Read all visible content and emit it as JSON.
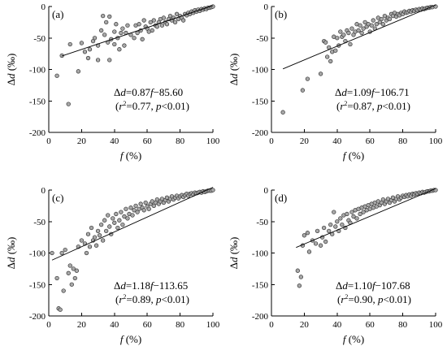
{
  "chart_data": [
    {
      "type": "scatter",
      "panel": "(a)",
      "xlabel": "f (%)",
      "ylabel": "Δd (‰)",
      "xlim": [
        0,
        100
      ],
      "ylim": [
        -200,
        0
      ],
      "xticks": [
        0,
        20,
        40,
        60,
        80,
        100
      ],
      "yticks": [
        0,
        -50,
        -100,
        -150,
        -200
      ],
      "equation": "Δd=0.87f−85.60",
      "stats": "(r2=0.77, p<0.01)",
      "fit": {
        "slope": 0.87,
        "intercept": -85.6,
        "x_range": [
          8,
          100
        ]
      },
      "points": [
        [
          5,
          -110
        ],
        [
          8,
          -78
        ],
        [
          12,
          -155
        ],
        [
          13,
          -60
        ],
        [
          18,
          -103
        ],
        [
          20,
          -58
        ],
        [
          22,
          -72
        ],
        [
          24,
          -82
        ],
        [
          25,
          -68
        ],
        [
          27,
          -55
        ],
        [
          28,
          -50
        ],
        [
          30,
          -85
        ],
        [
          30,
          -62
        ],
        [
          32,
          -38
        ],
        [
          33,
          -15
        ],
        [
          34,
          -45
        ],
        [
          35,
          -25
        ],
        [
          36,
          -57
        ],
        [
          37,
          -85
        ],
        [
          37,
          -16
        ],
        [
          38,
          -52
        ],
        [
          40,
          -40
        ],
        [
          40,
          -60
        ],
        [
          41,
          -28
        ],
        [
          42,
          -50
        ],
        [
          43,
          -68
        ],
        [
          44,
          -42
        ],
        [
          45,
          -35
        ],
        [
          46,
          -62
        ],
        [
          47,
          -42
        ],
        [
          48,
          -30
        ],
        [
          50,
          -45
        ],
        [
          52,
          -50
        ],
        [
          53,
          -30
        ],
        [
          54,
          -42
        ],
        [
          55,
          -28
        ],
        [
          56,
          -38
        ],
        [
          57,
          -52
        ],
        [
          58,
          -22
        ],
        [
          59,
          -32
        ],
        [
          60,
          -35
        ],
        [
          61,
          -40
        ],
        [
          62,
          -25
        ],
        [
          63,
          -38
        ],
        [
          64,
          -22
        ],
        [
          65,
          -30
        ],
        [
          66,
          -32
        ],
        [
          67,
          -25
        ],
        [
          68,
          -20
        ],
        [
          69,
          -30
        ],
        [
          70,
          -18
        ],
        [
          71,
          -25
        ],
        [
          72,
          -28
        ],
        [
          73,
          -20
        ],
        [
          74,
          -15
        ],
        [
          75,
          -22
        ],
        [
          76,
          -18
        ],
        [
          77,
          -25
        ],
        [
          78,
          -12
        ],
        [
          79,
          -20
        ],
        [
          80,
          -15
        ],
        [
          81,
          -18
        ],
        [
          82,
          -22
        ],
        [
          83,
          -12
        ],
        [
          84,
          -14
        ],
        [
          85,
          -10
        ],
        [
          86,
          -12
        ],
        [
          87,
          -8
        ],
        [
          88,
          -10
        ],
        [
          89,
          -6
        ],
        [
          90,
          -8
        ],
        [
          91,
          -5
        ],
        [
          92,
          -7
        ],
        [
          93,
          -4
        ],
        [
          94,
          -5
        ],
        [
          95,
          -3
        ],
        [
          96,
          -4
        ],
        [
          97,
          -2
        ],
        [
          98,
          -2
        ],
        [
          99,
          -1
        ],
        [
          100,
          0
        ]
      ]
    },
    {
      "type": "scatter",
      "panel": "(b)",
      "xlabel": "f (%)",
      "ylabel": "Δd (‰)",
      "xlim": [
        0,
        100
      ],
      "ylim": [
        -200,
        0
      ],
      "xticks": [
        0,
        20,
        40,
        60,
        80,
        100
      ],
      "yticks": [
        0,
        -50,
        -100,
        -150,
        -200
      ],
      "equation": "Δd=1.09f−106.71",
      "stats": "(r2=0.87, p<0.01)",
      "fit": {
        "slope": 1.09,
        "intercept": -106.71,
        "x_range": [
          7,
          100
        ]
      },
      "points": [
        [
          7,
          -168
        ],
        [
          19,
          -133
        ],
        [
          22,
          -115
        ],
        [
          30,
          -107
        ],
        [
          32,
          -55
        ],
        [
          33,
          -57
        ],
        [
          34,
          -80
        ],
        [
          35,
          -65
        ],
        [
          36,
          -87
        ],
        [
          37,
          -72
        ],
        [
          38,
          -48
        ],
        [
          39,
          -70
        ],
        [
          40,
          -50
        ],
        [
          41,
          -62
        ],
        [
          42,
          -40
        ],
        [
          43,
          -48
        ],
        [
          44,
          -45
        ],
        [
          45,
          -55
        ],
        [
          46,
          -38
        ],
        [
          47,
          -42
        ],
        [
          48,
          -60
        ],
        [
          49,
          -35
        ],
        [
          50,
          -45
        ],
        [
          51,
          -40
        ],
        [
          52,
          -28
        ],
        [
          53,
          -38
        ],
        [
          54,
          -30
        ],
        [
          55,
          -42
        ],
        [
          56,
          -35
        ],
        [
          57,
          -25
        ],
        [
          58,
          -32
        ],
        [
          59,
          -28
        ],
        [
          60,
          -40
        ],
        [
          61,
          -30
        ],
        [
          62,
          -22
        ],
        [
          63,
          -35
        ],
        [
          64,
          -28
        ],
        [
          65,
          -18
        ],
        [
          66,
          -25
        ],
        [
          67,
          -20
        ],
        [
          68,
          -28
        ],
        [
          69,
          -15
        ],
        [
          70,
          -22
        ],
        [
          71,
          -18
        ],
        [
          72,
          -20
        ],
        [
          73,
          -12
        ],
        [
          74,
          -15
        ],
        [
          75,
          -10
        ],
        [
          76,
          -16
        ],
        [
          77,
          -12
        ],
        [
          78,
          -14
        ],
        [
          79,
          -10
        ],
        [
          80,
          -12
        ],
        [
          81,
          -8
        ],
        [
          82,
          -10
        ],
        [
          83,
          -9
        ],
        [
          84,
          -7
        ],
        [
          85,
          -8
        ],
        [
          86,
          -6
        ],
        [
          87,
          -7
        ],
        [
          88,
          -5
        ],
        [
          89,
          -6
        ],
        [
          90,
          -4
        ],
        [
          91,
          -5
        ],
        [
          92,
          -3
        ],
        [
          93,
          -4
        ],
        [
          94,
          -3
        ],
        [
          95,
          -2
        ],
        [
          96,
          -2
        ],
        [
          97,
          -1
        ],
        [
          98,
          -1
        ],
        [
          100,
          0
        ]
      ]
    },
    {
      "type": "scatter",
      "panel": "(c)",
      "xlabel": "f (%)",
      "ylabel": "Δd (‰)",
      "xlim": [
        0,
        100
      ],
      "ylim": [
        -200,
        0
      ],
      "xticks": [
        0,
        20,
        40,
        60,
        80,
        100
      ],
      "yticks": [
        0,
        -50,
        -100,
        -150,
        -200
      ],
      "equation": "Δd=1.18f−113.65",
      "stats": "(r2=0.89, p<0.01)",
      "fit": {
        "slope": 1.18,
        "intercept": -113.65,
        "x_range": [
          2,
          100
        ]
      },
      "points": [
        [
          2,
          -100
        ],
        [
          5,
          -140
        ],
        [
          6,
          -188
        ],
        [
          7,
          -190
        ],
        [
          8,
          -100
        ],
        [
          9,
          -160
        ],
        [
          10,
          -95
        ],
        [
          12,
          -132
        ],
        [
          13,
          -120
        ],
        [
          14,
          -150
        ],
        [
          15,
          -125
        ],
        [
          16,
          -140
        ],
        [
          17,
          -128
        ],
        [
          18,
          -90
        ],
        [
          20,
          -80
        ],
        [
          22,
          -85
        ],
        [
          23,
          -100
        ],
        [
          24,
          -70
        ],
        [
          25,
          -90
        ],
        [
          26,
          -60
        ],
        [
          27,
          -80
        ],
        [
          28,
          -75
        ],
        [
          29,
          -88
        ],
        [
          30,
          -65
        ],
        [
          31,
          -72
        ],
        [
          32,
          -55
        ],
        [
          33,
          -80
        ],
        [
          34,
          -48
        ],
        [
          35,
          -65
        ],
        [
          36,
          -40
        ],
        [
          37,
          -58
        ],
        [
          38,
          -70
        ],
        [
          39,
          -45
        ],
        [
          40,
          -52
        ],
        [
          41,
          -38
        ],
        [
          42,
          -60
        ],
        [
          43,
          -48
        ],
        [
          44,
          -35
        ],
        [
          45,
          -55
        ],
        [
          46,
          -42
        ],
        [
          47,
          -30
        ],
        [
          48,
          -45
        ],
        [
          49,
          -38
        ],
        [
          50,
          -28
        ],
        [
          51,
          -40
        ],
        [
          52,
          -32
        ],
        [
          53,
          -25
        ],
        [
          54,
          -35
        ],
        [
          55,
          -30
        ],
        [
          56,
          -22
        ],
        [
          57,
          -28
        ],
        [
          58,
          -32
        ],
        [
          59,
          -20
        ],
        [
          60,
          -26
        ],
        [
          61,
          -30
        ],
        [
          62,
          -22
        ],
        [
          63,
          -18
        ],
        [
          64,
          -25
        ],
        [
          65,
          -20
        ],
        [
          66,
          -15
        ],
        [
          67,
          -22
        ],
        [
          68,
          -18
        ],
        [
          69,
          -14
        ],
        [
          70,
          -20
        ],
        [
          71,
          -16
        ],
        [
          72,
          -12
        ],
        [
          73,
          -18
        ],
        [
          74,
          -14
        ],
        [
          75,
          -10
        ],
        [
          76,
          -15
        ],
        [
          77,
          -12
        ],
        [
          78,
          -9
        ],
        [
          79,
          -13
        ],
        [
          80,
          -10
        ],
        [
          81,
          -8
        ],
        [
          82,
          -11
        ],
        [
          83,
          -8
        ],
        [
          84,
          -6
        ],
        [
          85,
          -9
        ],
        [
          86,
          -6
        ],
        [
          87,
          -5
        ],
        [
          88,
          -7
        ],
        [
          89,
          -4
        ],
        [
          90,
          -5
        ],
        [
          91,
          -4
        ],
        [
          92,
          -3
        ],
        [
          93,
          -4
        ],
        [
          94,
          -2
        ],
        [
          95,
          -3
        ],
        [
          96,
          -2
        ],
        [
          97,
          -1
        ],
        [
          98,
          -1
        ],
        [
          99,
          -1
        ],
        [
          100,
          0
        ]
      ]
    },
    {
      "type": "scatter",
      "panel": "(d)",
      "xlabel": "f (%)",
      "ylabel": "Δd (‰)",
      "xlim": [
        0,
        100
      ],
      "ylim": [
        -200,
        0
      ],
      "xticks": [
        0,
        20,
        40,
        60,
        80,
        100
      ],
      "yticks": [
        0,
        -50,
        -100,
        -150,
        -200
      ],
      "equation": "Δd=1.10f−107.68",
      "stats": "(r2=0.90, p<0.01)",
      "fit": {
        "slope": 1.1,
        "intercept": -107.68,
        "x_range": [
          15,
          100
        ]
      },
      "points": [
        [
          16,
          -128
        ],
        [
          17,
          -152
        ],
        [
          18,
          -138
        ],
        [
          19,
          -88
        ],
        [
          20,
          -72
        ],
        [
          22,
          -68
        ],
        [
          23,
          -98
        ],
        [
          25,
          -80
        ],
        [
          27,
          -85
        ],
        [
          28,
          -65
        ],
        [
          30,
          -88
        ],
        [
          31,
          -75
        ],
        [
          32,
          -60
        ],
        [
          33,
          -82
        ],
        [
          35,
          -65
        ],
        [
          36,
          -55
        ],
        [
          37,
          -70
        ],
        [
          38,
          -35
        ],
        [
          39,
          -58
        ],
        [
          40,
          -50
        ],
        [
          41,
          -65
        ],
        [
          42,
          -45
        ],
        [
          43,
          -55
        ],
        [
          44,
          -40
        ],
        [
          45,
          -60
        ],
        [
          46,
          -38
        ],
        [
          47,
          -48
        ],
        [
          48,
          -52
        ],
        [
          49,
          -35
        ],
        [
          50,
          -42
        ],
        [
          51,
          -32
        ],
        [
          52,
          -45
        ],
        [
          53,
          -30
        ],
        [
          54,
          -38
        ],
        [
          55,
          -28
        ],
        [
          56,
          -35
        ],
        [
          57,
          -26
        ],
        [
          58,
          -32
        ],
        [
          59,
          -24
        ],
        [
          60,
          -30
        ],
        [
          61,
          -22
        ],
        [
          62,
          -28
        ],
        [
          63,
          -20
        ],
        [
          64,
          -26
        ],
        [
          65,
          -18
        ],
        [
          66,
          -24
        ],
        [
          67,
          -20
        ],
        [
          68,
          -15
        ],
        [
          69,
          -22
        ],
        [
          70,
          -18
        ],
        [
          71,
          -14
        ],
        [
          72,
          -20
        ],
        [
          73,
          -16
        ],
        [
          74,
          -12
        ],
        [
          75,
          -18
        ],
        [
          76,
          -14
        ],
        [
          77,
          -10
        ],
        [
          78,
          -15
        ],
        [
          79,
          -12
        ],
        [
          80,
          -9
        ],
        [
          81,
          -11
        ],
        [
          82,
          -8
        ],
        [
          83,
          -10
        ],
        [
          84,
          -7
        ],
        [
          85,
          -9
        ],
        [
          86,
          -6
        ],
        [
          87,
          -7
        ],
        [
          88,
          -5
        ],
        [
          89,
          -6
        ],
        [
          90,
          -4
        ],
        [
          91,
          -5
        ],
        [
          92,
          -3
        ],
        [
          93,
          -4
        ],
        [
          94,
          -3
        ],
        [
          95,
          -2
        ],
        [
          96,
          -2
        ],
        [
          97,
          -1
        ],
        [
          98,
          -1
        ],
        [
          99,
          0
        ],
        [
          100,
          0
        ]
      ]
    }
  ]
}
